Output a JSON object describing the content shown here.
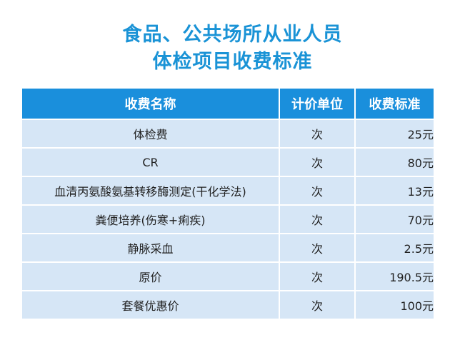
{
  "title": {
    "line1": "食品、公共场所从业人员",
    "line2": "体检项目收费标准"
  },
  "colors": {
    "title": "#1a93d6",
    "header_bg": "#1a8fdc",
    "row_bg": "#d6e6f6"
  },
  "table": {
    "headers": [
      "收费名称",
      "计价单位",
      "收费标准"
    ],
    "rows": [
      {
        "name": "体检费",
        "unit": "次",
        "price": "25元"
      },
      {
        "name": "CR",
        "unit": "次",
        "price": "80元"
      },
      {
        "name": "血清丙氨酸氨基转移酶测定(干化学法)",
        "unit": "次",
        "price": "13元"
      },
      {
        "name": "粪便培养(伤寒+痢疾)",
        "unit": "次",
        "price": "70元"
      },
      {
        "name": "静脉采血",
        "unit": "次",
        "price": "2.5元"
      },
      {
        "name": "原价",
        "unit": "次",
        "price": "190.5元"
      },
      {
        "name": "套餐优惠价",
        "unit": "次",
        "price": "100元"
      }
    ]
  }
}
